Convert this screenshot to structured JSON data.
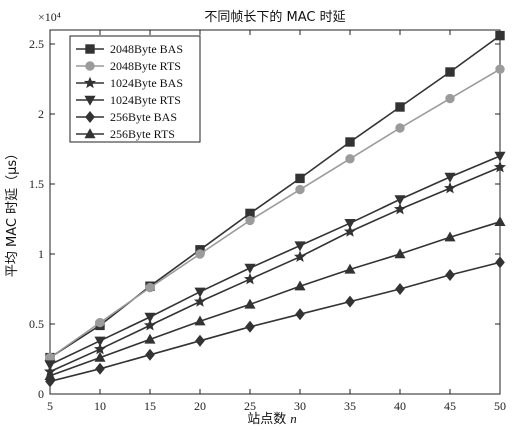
{
  "chart_data": {
    "type": "line",
    "title": "不同帧长下的 MAC 时延",
    "xlabel_main": "站点数",
    "xlabel_var": "n",
    "ylabel": "平均 MAC 时延（μs）",
    "y_multiplier": "×10⁴",
    "x": [
      5,
      10,
      15,
      20,
      25,
      30,
      35,
      40,
      45,
      50
    ],
    "xlim": [
      5,
      50
    ],
    "ylim": [
      0,
      2.6
    ],
    "xticks": [
      "5",
      "10",
      "15",
      "20",
      "25",
      "30",
      "35",
      "40",
      "45",
      "50"
    ],
    "yticks": [
      "0",
      "0.5",
      "1",
      "1.5",
      "2",
      "2.5"
    ],
    "ytick_values": [
      0,
      0.5,
      1,
      1.5,
      2,
      2.5
    ],
    "legend_position": "top-left",
    "series": [
      {
        "name": "2048Byte BAS",
        "marker": "square",
        "color": "#333333",
        "values": [
          0.26,
          0.49,
          0.77,
          1.03,
          1.29,
          1.54,
          1.8,
          2.05,
          2.3,
          2.56
        ]
      },
      {
        "name": "2048Byte RTS",
        "marker": "circle",
        "color": "#9b9b9b",
        "values": [
          0.26,
          0.51,
          0.76,
          1.0,
          1.24,
          1.46,
          1.68,
          1.9,
          2.11,
          2.32
        ]
      },
      {
        "name": "1024Byte BAS",
        "marker": "star",
        "color": "#333333",
        "values": [
          0.16,
          0.32,
          0.49,
          0.66,
          0.82,
          0.98,
          1.16,
          1.32,
          1.47,
          1.62
        ]
      },
      {
        "name": "1024Byte RTS",
        "marker": "triangle-down",
        "color": "#333333",
        "values": [
          0.21,
          0.38,
          0.55,
          0.73,
          0.9,
          1.06,
          1.22,
          1.39,
          1.55,
          1.7
        ]
      },
      {
        "name": "256Byte BAS",
        "marker": "diamond",
        "color": "#333333",
        "values": [
          0.09,
          0.18,
          0.28,
          0.38,
          0.48,
          0.57,
          0.66,
          0.75,
          0.85,
          0.94
        ]
      },
      {
        "name": "256Byte RTS",
        "marker": "triangle-up",
        "color": "#333333",
        "values": [
          0.13,
          0.26,
          0.39,
          0.52,
          0.64,
          0.77,
          0.89,
          1.0,
          1.12,
          1.23
        ]
      }
    ]
  }
}
